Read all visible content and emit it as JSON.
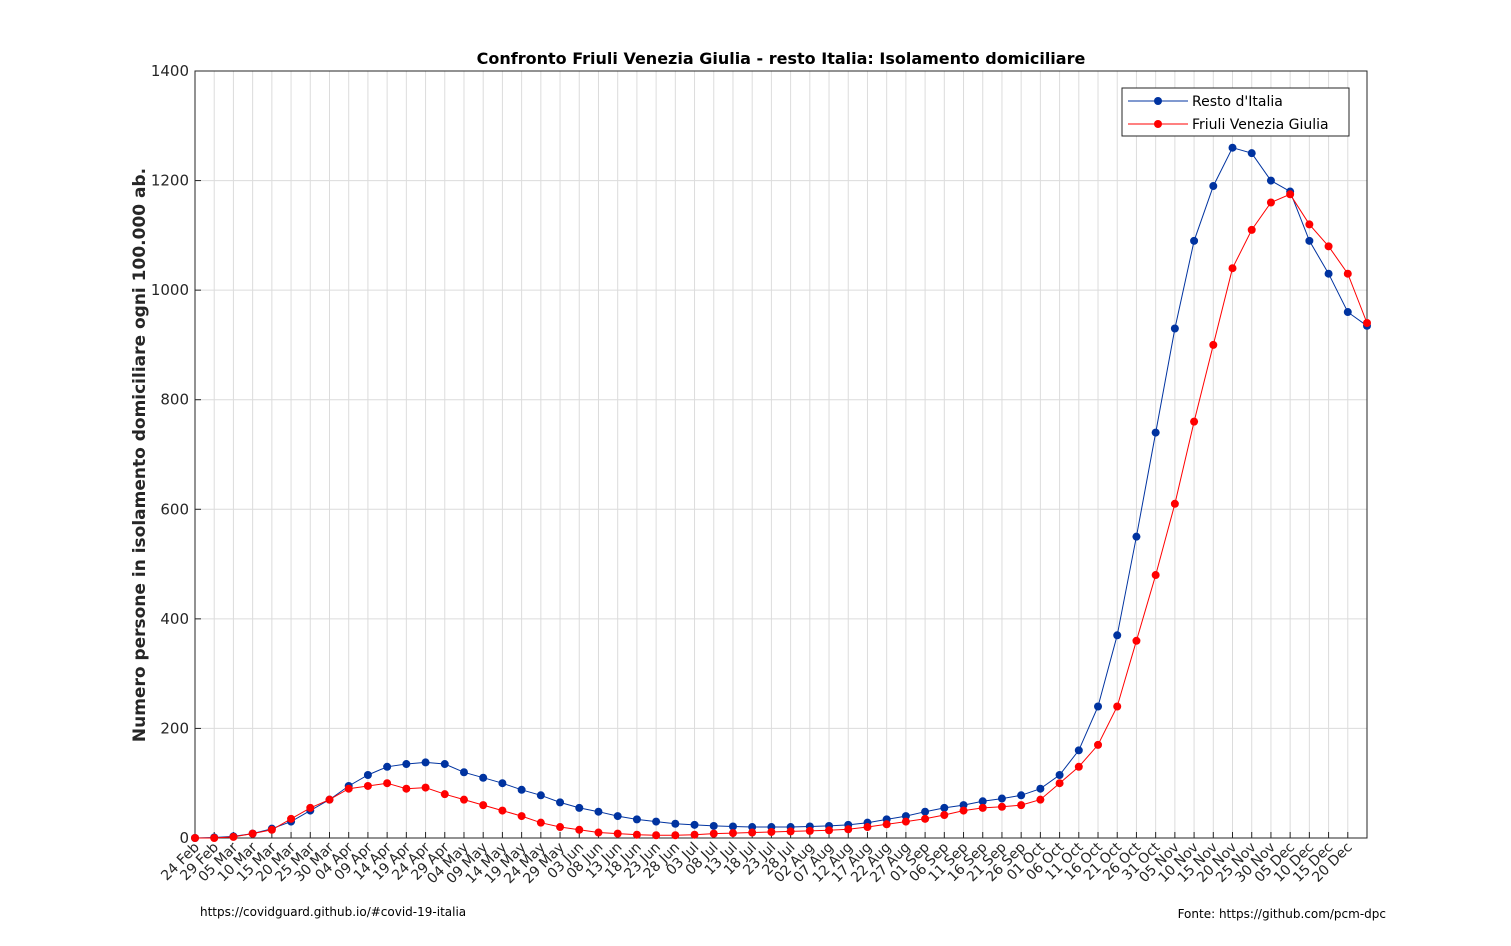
{
  "chart_data": {
    "type": "line",
    "title": "Confronto Friuli Venezia Giulia - resto Italia: Isolamento domiciliare",
    "y_label": "Numero persone in isolamento domiciliare ogni 100.000 ab.",
    "footer_left": "https://covidguard.github.io/#covid-19-italia",
    "footer_right": "Fonte: https://github.com/pcm-dpc",
    "categories": [
      "24 Feb",
      "29 Feb",
      "05 Mar",
      "10 Mar",
      "15 Mar",
      "20 Mar",
      "25 Mar",
      "30 Mar",
      "04 Apr",
      "09 Apr",
      "14 Apr",
      "19 Apr",
      "24 Apr",
      "29 Apr",
      "04 May",
      "09 May",
      "14 May",
      "19 May",
      "24 May",
      "29 May",
      "03 Jun",
      "08 Jun",
      "13 Jun",
      "18 Jun",
      "23 Jun",
      "28 Jun",
      "03 Jul",
      "08 Jul",
      "13 Jul",
      "18 Jul",
      "23 Jul",
      "28 Jul",
      "02 Aug",
      "07 Aug",
      "12 Aug",
      "17 Aug",
      "22 Aug",
      "27 Aug",
      "01 Sep",
      "06 Sep",
      "11 Sep",
      "16 Sep",
      "21 Sep",
      "26 Sep",
      "01 Oct",
      "06 Oct",
      "11 Oct",
      "16 Oct",
      "21 Oct",
      "26 Oct",
      "31 Oct",
      "05 Nov",
      "10 Nov",
      "15 Nov",
      "20 Nov",
      "25 Nov",
      "30 Nov",
      "05 Dec",
      "10 Dec",
      "15 Dec",
      "20 Dec",
      null
    ],
    "series": [
      {
        "name": "Resto d'Italia",
        "color": "#0033a0",
        "values": [
          0,
          1,
          3,
          8,
          17,
          30,
          50,
          70,
          95,
          115,
          130,
          135,
          138,
          135,
          120,
          110,
          100,
          88,
          78,
          65,
          55,
          48,
          40,
          34,
          30,
          26,
          24,
          22,
          21,
          20,
          20,
          20,
          21,
          22,
          24,
          28,
          34,
          40,
          48,
          55,
          60,
          67,
          72,
          78,
          90,
          115,
          160,
          240,
          370,
          550,
          740,
          930,
          1090,
          1190,
          1260,
          1250,
          1200,
          1180,
          1090,
          1030,
          960,
          935
        ]
      },
      {
        "name": "Friuli Venezia Giulia",
        "color": "#ff0000",
        "values": [
          0,
          0,
          2,
          8,
          15,
          35,
          55,
          70,
          90,
          95,
          100,
          90,
          92,
          80,
          70,
          60,
          50,
          40,
          28,
          20,
          15,
          10,
          8,
          6,
          5,
          5,
          6,
          8,
          9,
          10,
          11,
          12,
          13,
          14,
          16,
          20,
          25,
          30,
          35,
          42,
          50,
          55,
          57,
          60,
          70,
          100,
          130,
          170,
          240,
          360,
          480,
          610,
          760,
          900,
          1040,
          1110,
          1160,
          1175,
          1120,
          1080,
          1030,
          940
        ]
      }
    ],
    "ylim": [
      0,
      1400
    ],
    "yticks": [
      0,
      200,
      400,
      600,
      800,
      1000,
      1200,
      1400
    ],
    "grid": true,
    "legend": "upper right"
  }
}
